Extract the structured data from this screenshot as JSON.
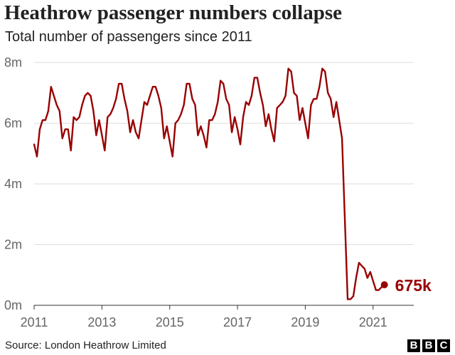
{
  "header": {
    "title": "Heathrow passenger numbers collapse",
    "subtitle": "Total number of passengers since 2011"
  },
  "footer": {
    "source": "Source: London Heathrow Limited",
    "logo_letters": [
      "B",
      "B",
      "C"
    ]
  },
  "chart_data": {
    "type": "line",
    "title": "Heathrow passenger numbers collapse",
    "subtitle": "Total number of passengers since 2011",
    "xlabel": "",
    "ylabel": "",
    "x_start": "2011-01",
    "x_end": "2021-05",
    "xlim": [
      2011.0,
      2022.2
    ],
    "ylim": [
      0,
      8
    ],
    "y_unit": "millions of passengers",
    "x_ticks": [
      2011,
      2013,
      2015,
      2017,
      2019,
      2021
    ],
    "x_tick_labels": [
      "2011",
      "2013",
      "2015",
      "2017",
      "2019",
      "2021"
    ],
    "y_ticks": [
      0,
      2,
      4,
      6,
      8
    ],
    "y_tick_labels": [
      "0m",
      "2m",
      "4m",
      "6m",
      "8m"
    ],
    "grid": "horizontal",
    "line_color": "#990000",
    "series": [
      {
        "values": [
          5.3,
          4.9,
          5.8,
          6.1,
          6.1,
          6.4,
          7.2,
          6.9,
          6.6,
          6.4,
          5.5,
          5.8,
          5.8,
          5.1,
          6.2,
          6.1,
          6.2,
          6.6,
          6.9,
          7.0,
          6.9,
          6.4,
          5.6,
          6.1,
          5.6,
          5.1,
          6.2,
          6.3,
          6.5,
          6.8,
          7.3,
          7.3,
          6.8,
          6.4,
          5.7,
          6.1,
          5.7,
          5.5,
          6.1,
          6.7,
          6.6,
          6.9,
          7.2,
          7.2,
          6.9,
          6.5,
          5.5,
          5.9,
          5.4,
          4.9,
          6.0,
          6.1,
          6.3,
          6.6,
          7.3,
          7.3,
          6.8,
          6.6,
          5.6,
          5.9,
          5.6,
          5.2,
          6.1,
          6.1,
          6.3,
          6.7,
          7.4,
          7.3,
          6.8,
          6.6,
          5.7,
          6.2,
          5.8,
          5.3,
          6.2,
          6.7,
          6.6,
          6.9,
          7.5,
          7.5,
          7.0,
          6.6,
          5.9,
          6.3,
          5.8,
          5.4,
          6.5,
          6.6,
          6.7,
          6.9,
          7.8,
          7.7,
          7.0,
          6.9,
          6.1,
          6.5,
          6.0,
          5.5,
          6.6,
          6.8,
          6.8,
          7.2,
          7.8,
          7.7,
          7.0,
          6.8,
          6.2,
          6.7,
          6.1,
          5.5,
          2.8,
          0.2,
          0.2,
          0.3,
          0.9,
          1.4,
          1.3,
          1.2,
          0.9,
          1.1,
          0.8,
          0.5,
          0.5,
          0.6,
          0.675
        ]
      }
    ],
    "end_label": "675k",
    "end_value": 0.675
  }
}
